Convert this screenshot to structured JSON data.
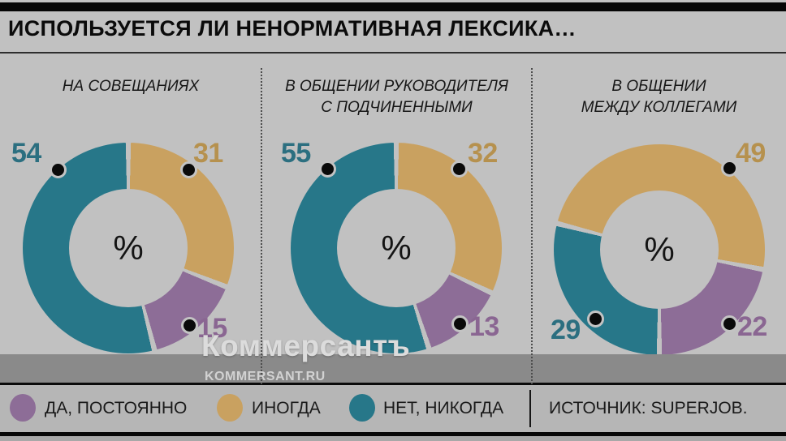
{
  "page": {
    "title": "ИСПОЛЬЗУЕТСЯ ЛИ НЕНОРМАТИВНАЯ ЛЕКСИКА…",
    "background_color": "#c1c1c1"
  },
  "watermark": {
    "brand": "Коммерсантъ",
    "site": "KOMMERSANT.RU"
  },
  "legend": {
    "items": [
      {
        "key": "da_postoyanno",
        "label": "ДА, ПОСТОЯННО",
        "color": "#8d6d97"
      },
      {
        "key": "inogda",
        "label": "ИНОГДА",
        "color": "#c9a160"
      },
      {
        "key": "net_nikogda",
        "label": "НЕТ, НИКОГДА",
        "color": "#277789"
      }
    ],
    "source": "ИСТОЧНИК: SUPERJOB."
  },
  "chart_data": {
    "type": "pie",
    "subtype": "donut",
    "unit": "%",
    "center_label": "%",
    "legend_position": "bottom",
    "series_colors": {
      "da_postoyanno": "#8d6d97",
      "inogda": "#c9a160",
      "net_nikogda": "#277789"
    },
    "label_colors": {
      "da_postoyanno": "#8a6692",
      "inogda": "#b6914e",
      "net_nikogda": "#2c6f80"
    },
    "charts": [
      {
        "title": "НА СОВЕЩАНИЯХ",
        "title_lines": [
          "НА СОВЕЩАНИЯХ"
        ],
        "start_angle_deg": 0,
        "segments": [
          {
            "label": "ИНОГДА",
            "key": "inogda",
            "value": 31
          },
          {
            "label": "ДА, ПОСТОЯННО",
            "key": "da_postoyanno",
            "value": 15
          },
          {
            "label": "НЕТ, НИКОГДА",
            "key": "net_nikogda",
            "value": 54
          }
        ]
      },
      {
        "title": "В ОБЩЕНИИ РУКОВОДИТЕЛЯ С ПОДЧИНЕННЫМИ",
        "title_lines": [
          "В ОБЩЕНИИ РУКОВОДИТЕЛЯ",
          "С ПОДЧИНЕННЫМИ"
        ],
        "start_angle_deg": 0,
        "segments": [
          {
            "label": "ИНОГДА",
            "key": "inogda",
            "value": 32
          },
          {
            "label": "ДА, ПОСТОЯННО",
            "key": "da_postoyanno",
            "value": 13
          },
          {
            "label": "НЕТ, НИКОГДА",
            "key": "net_nikogda",
            "value": 55
          }
        ]
      },
      {
        "title": "В ОБЩЕНИИ МЕЖДУ КОЛЛЕГАМИ",
        "title_lines": [
          "В ОБЩЕНИИ",
          "МЕЖДУ КОЛЛЕГАМИ"
        ],
        "start_angle_deg": 284.4,
        "segments": [
          {
            "label": "ИНОГДА",
            "key": "inogda",
            "value": 49
          },
          {
            "label": "ДА, ПОСТОЯННО",
            "key": "da_postoyanno",
            "value": 22
          },
          {
            "label": "НЕТ, НИКОГДА",
            "key": "net_nikogda",
            "value": 29
          }
        ]
      }
    ]
  }
}
